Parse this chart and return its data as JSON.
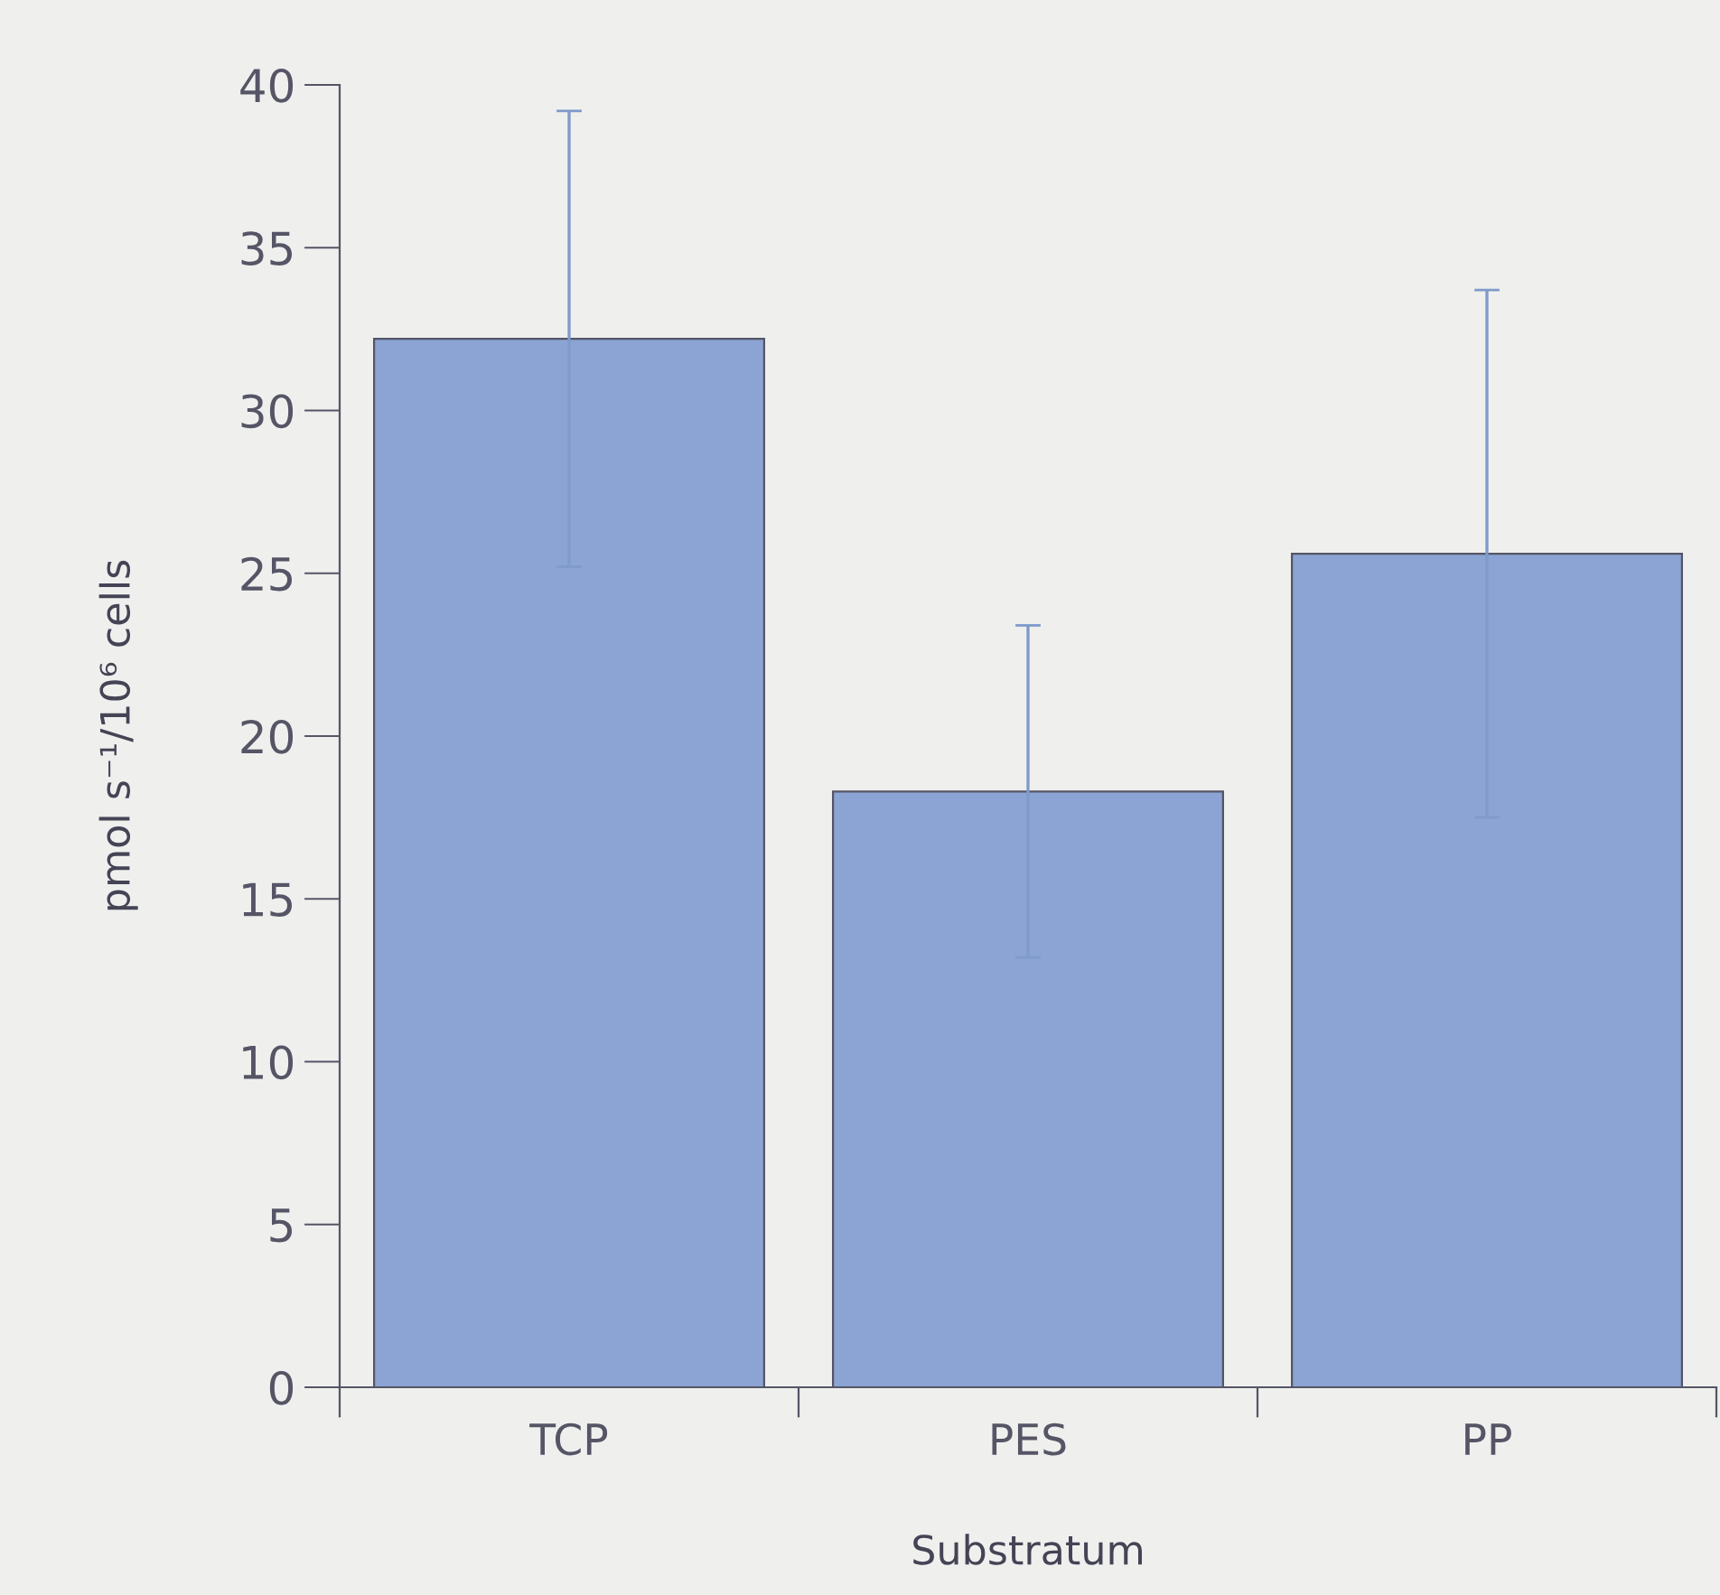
{
  "chart_data": {
    "type": "bar",
    "xlabel": "Substratum",
    "ylabel": "pmol s⁻¹/10⁶ cells",
    "categories": [
      "TCP",
      "PES",
      "PP"
    ],
    "values": [
      32.2,
      18.3,
      25.6
    ],
    "errors": [
      7,
      5.1,
      8.1
    ],
    "color": "#8ba4d3",
    "ylim": [
      0,
      40
    ],
    "yticks": [
      0,
      5,
      10,
      15,
      20,
      25,
      30,
      35,
      40
    ],
    "grid": false
  }
}
